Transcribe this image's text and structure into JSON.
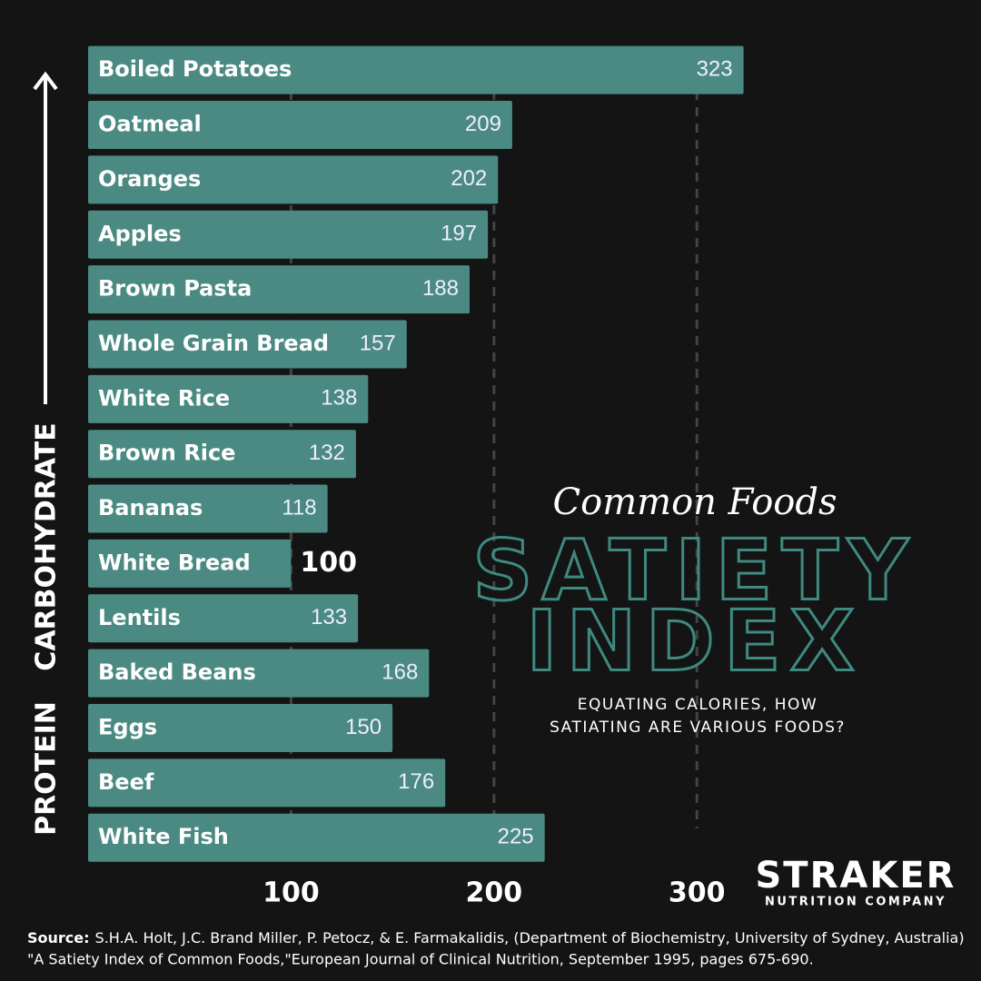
{
  "chart_data": {
    "type": "hbar",
    "kicker": "Common Foods",
    "title": [
      "SATIETY",
      "INDEX"
    ],
    "subtitle": [
      "EQUATING CALORIES, HOW",
      "SATIATING ARE VARIOUS FOODS?"
    ],
    "axis_labels": {
      "top": "CARBOHYDRATE",
      "bottom": "PROTEIN"
    },
    "categories": [
      "Boiled Potatoes",
      "Oatmeal",
      "Oranges",
      "Apples",
      "Brown Pasta",
      "Whole Grain Bread",
      "White Rice",
      "Brown Rice",
      "Bananas",
      "White Bread",
      "Lentils",
      "Baked Beans",
      "Eggs",
      "Beef",
      "White Fish"
    ],
    "values": [
      323,
      209,
      202,
      197,
      188,
      157,
      138,
      132,
      118,
      100,
      133,
      168,
      150,
      176,
      225
    ],
    "highlight_category": "White Bread",
    "color": "#4a8a82",
    "xlim": [
      0,
      440
    ],
    "xticks": [
      100,
      200,
      300
    ],
    "grid": true,
    "brand": {
      "name": "STRAKER",
      "tagline": "NUTRITION COMPANY"
    },
    "source": {
      "label": "Source:",
      "lines": [
        "S.H.A. Holt, J.C. Brand Miller, P. Petocz, & E. Farmakalidis, (Department of Biochemistry, University of Sydney, Australia)",
        "\"A Satiety Index of Common Foods,\"European Journal of Clinical Nutrition, September 1995, pages 675-690."
      ]
    }
  }
}
